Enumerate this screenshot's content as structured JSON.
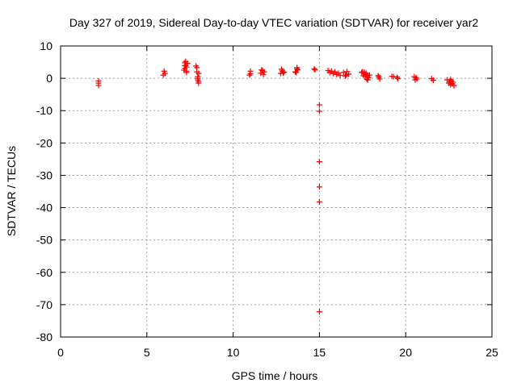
{
  "chart_data": {
    "type": "scatter",
    "title": "Day 327 of 2019, Sidereal Day-to-day VTEC variation (SDTVAR) for receiver yar2",
    "xlabel": "GPS time / hours",
    "ylabel": "SDTVAR / TECUs",
    "xlim": [
      0,
      25
    ],
    "ylim": [
      -80,
      10
    ],
    "xticks": [
      0,
      5,
      10,
      15,
      20,
      25
    ],
    "yticks": [
      10,
      0,
      -10,
      -20,
      -30,
      -40,
      -50,
      -60,
      -70,
      -80
    ],
    "grid": true,
    "marker": "+",
    "color": "#ff0000",
    "series": [
      {
        "name": "SDTVAR",
        "x": [
          2.2,
          2.2,
          2.2,
          5.95,
          6.0,
          6.05,
          7.15,
          7.2,
          7.2,
          7.25,
          7.25,
          7.3,
          7.3,
          7.35,
          7.3,
          7.2,
          7.85,
          7.9,
          7.95,
          7.95,
          8.0,
          8.0,
          7.9,
          7.95,
          8.0,
          10.95,
          11.0,
          11.0,
          11.6,
          11.7,
          11.75,
          11.8,
          11.65,
          12.75,
          12.85,
          12.95,
          12.8,
          12.9,
          13.6,
          13.7,
          13.75,
          13.65,
          13.7,
          14.7,
          14.75,
          15.0,
          15.0,
          15.0,
          15.0,
          15.0,
          15.0,
          15.5,
          15.6,
          15.7,
          15.8,
          15.9,
          16.0,
          16.1,
          16.2,
          16.4,
          16.5,
          16.6,
          16.7,
          16.55,
          17.45,
          17.5,
          17.55,
          17.6,
          17.65,
          17.7,
          17.75,
          17.8,
          17.85,
          17.9,
          17.6,
          17.7,
          17.8,
          18.4,
          18.5,
          18.45,
          19.2,
          19.3,
          19.5,
          19.55,
          20.5,
          20.55,
          20.6,
          20.65,
          21.5,
          21.6,
          22.4,
          22.5,
          22.55,
          22.6,
          22.65,
          22.7,
          22.75,
          22.8,
          22.6
        ],
        "y": [
          -0.8,
          -1.5,
          -2.2,
          1.0,
          2.2,
          1.5,
          2.5,
          4.8,
          3.0,
          5.2,
          4.0,
          3.5,
          2.2,
          4.6,
          1.8,
          3.9,
          3.8,
          2.0,
          0.5,
          -0.5,
          -1.5,
          1.5,
          3.3,
          0.0,
          -1.0,
          1.0,
          2.2,
          1.4,
          1.6,
          2.4,
          1.2,
          2.0,
          2.6,
          1.5,
          2.3,
          1.9,
          2.8,
          1.7,
          2.0,
          3.3,
          2.6,
          1.8,
          2.9,
          2.9,
          2.6,
          -8.2,
          -10.2,
          -25.8,
          -33.6,
          -38.2,
          -72.2,
          2.4,
          1.8,
          2.2,
          1.5,
          2.0,
          1.2,
          1.6,
          0.9,
          1.8,
          0.7,
          2.1,
          1.3,
          1.0,
          1.8,
          2.0,
          0.8,
          1.4,
          0.6,
          1.2,
          -0.3,
          0.8,
          0.2,
          1.0,
          1.9,
          1.6,
          -0.5,
          0.8,
          -0.2,
          0.4,
          0.6,
          0.5,
          0.3,
          -0.1,
          0.5,
          -0.5,
          0.2,
          -0.2,
          -0.1,
          -0.6,
          -0.5,
          -1.5,
          -1.0,
          -2.0,
          -0.8,
          -1.7,
          -1.2,
          -2.3,
          -0.4
        ]
      }
    ]
  }
}
